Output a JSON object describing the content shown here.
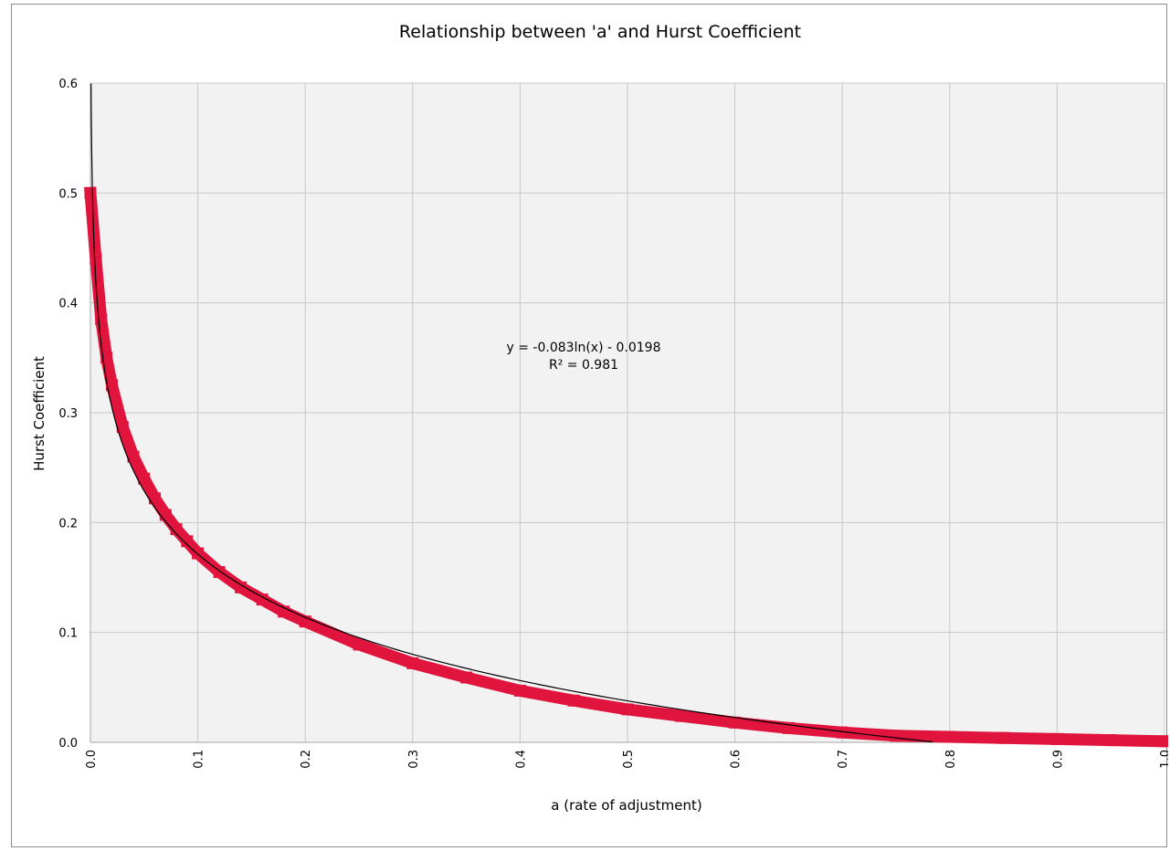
{
  "chart_data": {
    "type": "scatter",
    "title": "Relationship between 'a' and Hurst Coefficient",
    "xlabel": "a (rate of adjustment)",
    "ylabel": "Hurst Coefficient",
    "xlim": [
      0.0,
      1.0
    ],
    "ylim": [
      0.0,
      0.6
    ],
    "x_ticks": [
      "0.0",
      "0.1",
      "0.2",
      "0.3",
      "0.4",
      "0.5",
      "0.6",
      "0.7",
      "0.8",
      "0.9",
      "1.0"
    ],
    "y_ticks": [
      "0.0",
      "0.1",
      "0.2",
      "0.3",
      "0.4",
      "0.5",
      "0.6"
    ],
    "grid": true,
    "legend": "none",
    "background_color": "#f2f2f2",
    "series": [
      {
        "marker": "square",
        "color": "#e0143c",
        "x": [
          0.0,
          0.005,
          0.01,
          0.015,
          0.02,
          0.03,
          0.04,
          0.05,
          0.06,
          0.07,
          0.08,
          0.09,
          0.1,
          0.12,
          0.14,
          0.16,
          0.18,
          0.2,
          0.25,
          0.3,
          0.35,
          0.4,
          0.45,
          0.5,
          0.55,
          0.6,
          0.65,
          0.7,
          0.75,
          0.8,
          0.85,
          0.9,
          0.95,
          1.0
        ],
        "y": [
          0.5,
          0.44,
          0.385,
          0.35,
          0.325,
          0.287,
          0.26,
          0.24,
          0.222,
          0.207,
          0.194,
          0.183,
          0.172,
          0.155,
          0.141,
          0.13,
          0.119,
          0.11,
          0.089,
          0.072,
          0.059,
          0.047,
          0.038,
          0.03,
          0.024,
          0.018,
          0.013,
          0.009,
          0.006,
          0.005,
          0.004,
          0.003,
          0.002,
          0.001
        ]
      }
    ],
    "trendline": {
      "type": "logarithmic",
      "equation": "y = -0.083ln(x) - 0.0198",
      "r_squared": "R² = 0.981",
      "slope": -0.083,
      "intercept": -0.0198,
      "color": "#000000"
    }
  }
}
